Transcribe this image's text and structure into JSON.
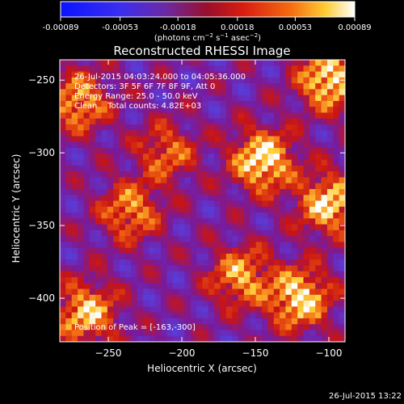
{
  "colorbar": {
    "tick_labels": [
      "-0.00089",
      "-0.00053",
      "-0.00018",
      "0.00018",
      "0.00053",
      "0.00089"
    ],
    "tick_values": [
      -0.00089,
      -0.00053,
      -0.00018,
      0.00018,
      0.00053,
      0.00089
    ],
    "range": [
      -0.00089,
      0.00089
    ],
    "units_main": "(photons cm",
    "units_exp1": "−2",
    "units_mid": " s",
    "units_exp2": "−1",
    "units_end": " asec",
    "units_exp3": "−2",
    "units_close": ")"
  },
  "chart_data": {
    "type": "heatmap",
    "title": "Reconstructed RHESSI Image",
    "xlabel": "Heliocentric X (arcsec)",
    "ylabel": "Heliocentric Y (arcsec)",
    "xlim": [
      -283,
      -89
    ],
    "ylim": [
      -430,
      -236
    ],
    "x_ticks": [
      -250,
      -200,
      -150,
      -100
    ],
    "y_ticks": [
      -250,
      -300,
      -350,
      -400
    ],
    "x_tick_labels": [
      "−250",
      "−200",
      "−150",
      "−100"
    ],
    "y_tick_labels": [
      "−250",
      "−300",
      "−350",
      "−400"
    ],
    "colormap": [
      "#0a14ff",
      "#5a3cd8",
      "#7a1a9a",
      "#c81414",
      "#f06010",
      "#ffd23c",
      "#ffffff"
    ],
    "annotations": {
      "time_range": "26-Jul-2015 04:03:24.000 to 04:05:36.000",
      "detectors": "Detectors: 3F 5F 6F 7F 8F 9F, Att 0",
      "energy_range": "Energy Range: 25.0 - 50.0 keV",
      "clean": "Clean    Total counts: 4.82E+03",
      "peak": "Position of Peak = [-163,-300]"
    },
    "peak_position": [
      -163,
      -300
    ],
    "bright_regions": [
      {
        "x": -145,
        "y": -305,
        "level": 0.85
      },
      {
        "x": -100,
        "y": -250,
        "level": 0.8
      },
      {
        "x": -100,
        "y": -335,
        "level": 0.75
      },
      {
        "x": -120,
        "y": -400,
        "level": 0.8
      },
      {
        "x": -265,
        "y": -410,
        "level": 0.7
      },
      {
        "x": -270,
        "y": -265,
        "level": 0.6
      },
      {
        "x": -160,
        "y": -385,
        "level": 0.6
      },
      {
        "x": -235,
        "y": -340,
        "level": 0.55
      },
      {
        "x": -210,
        "y": -300,
        "level": 0.45
      }
    ]
  },
  "footer": {
    "timestamp": "26-Jul-2015 13:22"
  }
}
